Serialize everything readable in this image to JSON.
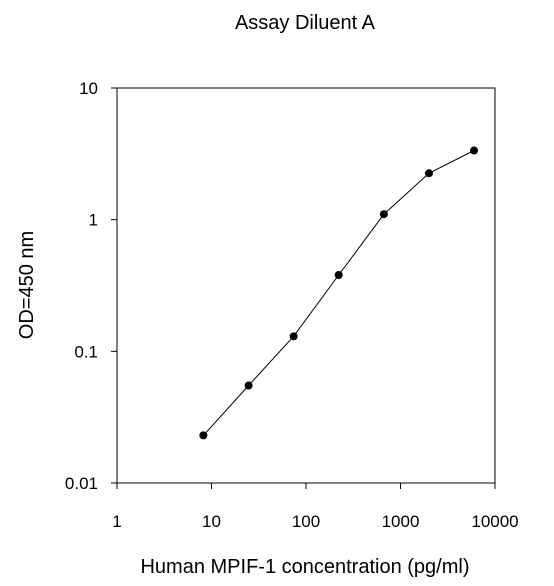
{
  "chart_data": {
    "type": "line",
    "title": "Assay Diluent A",
    "xlabel": "Human MPIF-1 concentration (pg/ml)",
    "ylabel": "OD=450 nm",
    "xscale": "log",
    "yscale": "log",
    "xlim": [
      1,
      10000
    ],
    "ylim": [
      0.01,
      10
    ],
    "xticks": [
      "1",
      "10",
      "100",
      "1000",
      "10000"
    ],
    "yticks": [
      "0.01",
      "0.1",
      "1",
      "10"
    ],
    "grid": false,
    "series": [
      {
        "x": [
          8.2,
          24.7,
          74,
          222,
          667,
          2000,
          6000
        ],
        "y": [
          0.023,
          0.055,
          0.13,
          0.38,
          1.1,
          2.25,
          3.35
        ],
        "marker": "circle",
        "color": "#000000"
      }
    ]
  }
}
